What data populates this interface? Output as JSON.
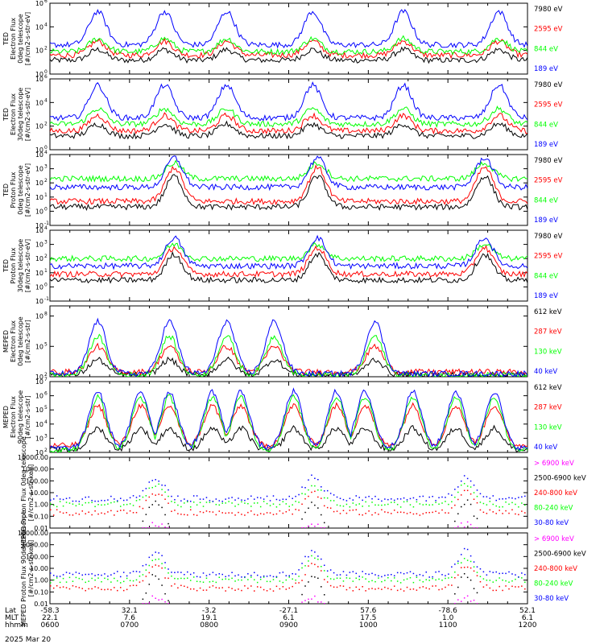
{
  "figure": {
    "date_label": "2025 Mar 20",
    "colors": {
      "blue": "#0000ff",
      "red": "#ff0000",
      "green": "#00ff00",
      "black": "#000000",
      "magenta": "#ff00ff"
    },
    "footer": {
      "labels": [
        "Lat",
        "MLT",
        "hhmm"
      ],
      "columns": [
        [
          "-58.3",
          "22.1",
          "0600"
        ],
        [
          "32.1",
          "7.6",
          "0700"
        ],
        [
          "-3.2",
          "19.1",
          "0800"
        ],
        [
          "-27.1",
          "6.1",
          "0900"
        ],
        [
          "57.6",
          "17.5",
          "1000"
        ],
        [
          "-78.6",
          "1.0",
          "1100"
        ],
        [
          "52.1",
          "6.1",
          "1200"
        ]
      ]
    }
  },
  "chart_data": [
    {
      "type": "line",
      "scale": "log",
      "ylim": [
        1,
        1000000
      ],
      "ylabel": [
        "TED",
        "Electron Flux",
        "0deg telescope",
        "[#/cm2-s-str-eV]"
      ],
      "ticks": [
        {
          "v": 1,
          "label": "10"
        },
        {
          "v": 100,
          "label": "10"
        },
        {
          "v": 10000,
          "label": "10"
        },
        {
          "v": 1000000,
          "label": "10"
        }
      ],
      "tick_exponents": [
        "0",
        "2",
        "4",
        "6"
      ],
      "passes_x": [
        0.1,
        0.24,
        0.37,
        0.55,
        0.74,
        0.94
      ],
      "series": [
        {
          "name": "7980 eV",
          "color": "black",
          "baseline": 15,
          "peak": 120
        },
        {
          "name": "2595 eV",
          "color": "red",
          "baseline": 40,
          "peak": 600
        },
        {
          "name": "844 eV",
          "color": "green",
          "baseline": 80,
          "peak": 1000
        },
        {
          "name": "189 eV",
          "color": "blue",
          "baseline": 300,
          "peak": 200000
        }
      ]
    },
    {
      "type": "line",
      "scale": "log",
      "ylim": [
        1,
        1000000
      ],
      "ylabel": [
        "TED",
        "Electron Flux",
        "30deg telescope",
        "[#/cm2-s-str-eV]"
      ],
      "ticks": [
        {
          "v": 1,
          "label": "10"
        },
        {
          "v": 100,
          "label": "10"
        },
        {
          "v": 10000,
          "label": "10"
        },
        {
          "v": 1000000,
          "label": "10"
        }
      ],
      "tick_exponents": [
        "0",
        "2",
        "4",
        "6"
      ],
      "passes_x": [
        0.1,
        0.24,
        0.37,
        0.55,
        0.74,
        0.94
      ],
      "series": [
        {
          "name": "7980 eV",
          "color": "black",
          "baseline": 15,
          "peak": 150
        },
        {
          "name": "2595 eV",
          "color": "red",
          "baseline": 40,
          "peak": 800
        },
        {
          "name": "844 eV",
          "color": "green",
          "baseline": 150,
          "peak": 3000
        },
        {
          "name": "189 eV",
          "color": "blue",
          "baseline": 500,
          "peak": 300000
        }
      ]
    },
    {
      "type": "line",
      "scale": "log",
      "ylim": [
        0.1,
        10000
      ],
      "ylabel": [
        "TED",
        "Proton Flux",
        "0deg telescope",
        "[#/cm2-s-str-eV]"
      ],
      "ticks": [
        {
          "v": 0.1,
          "label": "10"
        },
        {
          "v": 1,
          "label": "10"
        },
        {
          "v": 10,
          "label": "10"
        },
        {
          "v": 100,
          "label": "10"
        },
        {
          "v": 1000,
          "label": "10"
        },
        {
          "v": 10000,
          "label": "10"
        }
      ],
      "tick_exponents": [
        "-1",
        "0",
        "1",
        "2",
        "3",
        "4"
      ],
      "passes_x": [
        0.26,
        0.56,
        0.91
      ],
      "series": [
        {
          "name": "7980 eV",
          "color": "black",
          "baseline": 2,
          "peak": 300
        },
        {
          "name": "2595 eV",
          "color": "red",
          "baseline": 5,
          "peak": 1200
        },
        {
          "name": "844 eV",
          "color": "green",
          "baseline": 200,
          "peak": 2500
        },
        {
          "name": "189 eV",
          "color": "blue",
          "baseline": 50,
          "peak": 6000
        }
      ]
    },
    {
      "type": "line",
      "scale": "log",
      "ylim": [
        0.1,
        10000
      ],
      "ylabel": [
        "TED",
        "Proton Flux",
        "30deg telescope",
        "[#/cm2-s-str-eV]"
      ],
      "ticks": [
        {
          "v": 0.1,
          "label": "10"
        },
        {
          "v": 1,
          "label": "10"
        },
        {
          "v": 10,
          "label": "10"
        },
        {
          "v": 100,
          "label": "10"
        },
        {
          "v": 1000,
          "label": "10"
        },
        {
          "v": 10000,
          "label": "10"
        }
      ],
      "tick_exponents": [
        "-1",
        "0",
        "1",
        "2",
        "3",
        "4"
      ],
      "passes_x": [
        0.26,
        0.56,
        0.91
      ],
      "series": [
        {
          "name": "7980 eV",
          "color": "black",
          "baseline": 3,
          "peak": 200
        },
        {
          "name": "2595 eV",
          "color": "red",
          "baseline": 8,
          "peak": 600
        },
        {
          "name": "844 eV",
          "color": "green",
          "baseline": 100,
          "peak": 1000
        },
        {
          "name": "189 eV",
          "color": "blue",
          "baseline": 30,
          "peak": 3000
        }
      ]
    },
    {
      "type": "line",
      "scale": "log",
      "ylim": [
        100,
        1000000000
      ],
      "ylabel": [
        "MEPED",
        "Electron Flux",
        "0deg telescope",
        "[#/cm2-s-str]"
      ],
      "ticks": [
        {
          "v": 100,
          "label": "10"
        },
        {
          "v": 100000,
          "label": "10"
        },
        {
          "v": 100000000,
          "label": "10"
        }
      ],
      "tick_exponents": [
        "2",
        "5",
        "8"
      ],
      "passes_x": [
        0.1,
        0.25,
        0.37,
        0.47,
        0.68
      ],
      "series": [
        {
          "name": "612 keV",
          "color": "black",
          "baseline": 150,
          "peak": 5000
        },
        {
          "name": "287 keV",
          "color": "red",
          "baseline": 300,
          "peak": 100000
        },
        {
          "name": "130 keV",
          "color": "green",
          "baseline": 150,
          "peak": 1000000
        },
        {
          "name": "40 keV",
          "color": "blue",
          "baseline": 200,
          "peak": 30000000
        }
      ]
    },
    {
      "type": "line",
      "scale": "log",
      "ylim": [
        100,
        10000000
      ],
      "ylabel": [
        "MEPED",
        "Electron Flux",
        "90deg telescope",
        "[#/cm2-s-str]"
      ],
      "ticks": [
        {
          "v": 100,
          "label": "10"
        },
        {
          "v": 1000,
          "label": "10"
        },
        {
          "v": 10000,
          "label": "10"
        },
        {
          "v": 100000,
          "label": "10"
        },
        {
          "v": 1000000,
          "label": "10"
        },
        {
          "v": 10000000,
          "label": "10"
        }
      ],
      "tick_exponents": [
        "2",
        "3",
        "4",
        "5",
        "6",
        "7"
      ],
      "passes_x": [
        0.1,
        0.19,
        0.25,
        0.34,
        0.4,
        0.51,
        0.6,
        0.66,
        0.76,
        0.85,
        0.93
      ],
      "series": [
        {
          "name": "612 keV",
          "color": "black",
          "baseline": 150,
          "peak": 5000
        },
        {
          "name": "287 keV",
          "color": "red",
          "baseline": 300,
          "peak": 200000
        },
        {
          "name": "130 keV",
          "color": "green",
          "baseline": 150,
          "peak": 800000
        },
        {
          "name": "40 keV",
          "color": "blue",
          "baseline": 200,
          "peak": 2000000
        }
      ]
    },
    {
      "type": "scatter",
      "scale": "log",
      "ylim": [
        0.01,
        10000
      ],
      "ylabel": [
        "MEPED Proton Flux 0deg telescope",
        "[#/cm2-s-str-keV]"
      ],
      "ticks": [
        {
          "v": 0.01,
          "label": "0.01"
        },
        {
          "v": 0.1,
          "label": "0.10"
        },
        {
          "v": 1,
          "label": "1.00"
        },
        {
          "v": 10,
          "label": "10.00"
        },
        {
          "v": 100,
          "label": "100.00"
        },
        {
          "v": 1000,
          "label": "1000.00"
        },
        {
          "v": 10000,
          "label": "10000.00"
        }
      ],
      "passes_x": [
        0.22,
        0.55,
        0.87
      ],
      "series": [
        {
          "name": "> 6900 keV",
          "color": "magenta",
          "baseline": 0,
          "peak": 0.02
        },
        {
          "name": "2500-6900 keV",
          "color": "black",
          "baseline": 0,
          "peak": 1.5
        },
        {
          "name": "240-800 keV",
          "color": "red",
          "baseline": 0.2,
          "peak": 10
        },
        {
          "name": "80-240 keV",
          "color": "green",
          "baseline": 1,
          "peak": 50
        },
        {
          "name": "30-80 keV",
          "color": "blue",
          "baseline": 3,
          "peak": 200
        }
      ]
    },
    {
      "type": "scatter",
      "scale": "log",
      "ylim": [
        0.01,
        10000
      ],
      "ylabel": [
        "MEPED Proton Flux 90deg telescope",
        "[#/cm2-s-str-keV]"
      ],
      "ticks": [
        {
          "v": 0.01,
          "label": "0.01"
        },
        {
          "v": 0.1,
          "label": "0.10"
        },
        {
          "v": 1,
          "label": "1.00"
        },
        {
          "v": 10,
          "label": "10.00"
        },
        {
          "v": 100,
          "label": "100.00"
        },
        {
          "v": 1000,
          "label": "1000.00"
        },
        {
          "v": 10000,
          "label": "10000.00"
        }
      ],
      "passes_x": [
        0.22,
        0.55,
        0.87
      ],
      "series": [
        {
          "name": "> 6900 keV",
          "color": "magenta",
          "baseline": 0,
          "peak": 0.03
        },
        {
          "name": "2500-6900 keV",
          "color": "black",
          "baseline": 0,
          "peak": 3
        },
        {
          "name": "240-800 keV",
          "color": "red",
          "baseline": 0.2,
          "peak": 20
        },
        {
          "name": "80-240 keV",
          "color": "green",
          "baseline": 1,
          "peak": 80
        },
        {
          "name": "30-80 keV",
          "color": "blue",
          "baseline": 3,
          "peak": 300
        }
      ]
    }
  ]
}
